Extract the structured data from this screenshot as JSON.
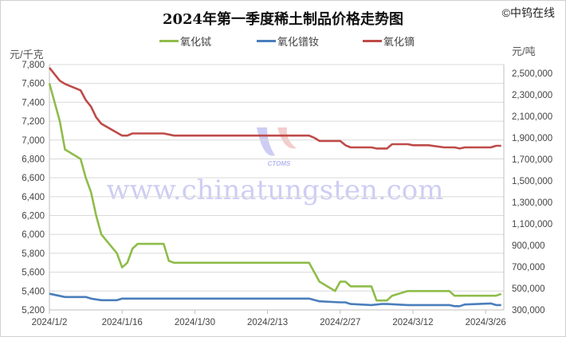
{
  "chart_data": {
    "type": "line",
    "title": "2024年第一季度稀土制品价格走势图",
    "copyright": "©中钨在线",
    "watermark": "www.chinatungsten.com",
    "watermark_logo": "CTOMS",
    "y_left_label": "元/千克",
    "y_right_label": "元/吨",
    "x_range": [
      "2024-01-02",
      "2024-03-29"
    ],
    "x_ticks": [
      {
        "date": "2024-01-02",
        "label": "2024/1/2"
      },
      {
        "date": "2024-01-16",
        "label": "2024/1/16"
      },
      {
        "date": "2024-01-30",
        "label": "2024/1/30"
      },
      {
        "date": "2024-02-13",
        "label": "2024/2/13"
      },
      {
        "date": "2024-02-27",
        "label": "2024/2/27"
      },
      {
        "date": "2024-03-12",
        "label": "2024/3/12"
      },
      {
        "date": "2024-03-26",
        "label": "2024/3/26"
      }
    ],
    "y_left": {
      "min": 5200,
      "max": 7800,
      "ticks": [
        "5,200",
        "5,400",
        "5,600",
        "5,800",
        "6,000",
        "6,200",
        "6,400",
        "6,600",
        "6,800",
        "7,000",
        "7,200",
        "7,400",
        "7,600",
        "7,800"
      ]
    },
    "y_right": {
      "min": 300000,
      "max": 2580000,
      "ticks": [
        "300,000",
        "500,000",
        "700,000",
        "900,000",
        "1,100,000",
        "1,300,000",
        "1,500,000",
        "1,700,000",
        "1,900,000",
        "2,100,000",
        "2,300,000",
        "2,500,000"
      ]
    },
    "grid": true,
    "legend_position": "top",
    "series": [
      {
        "name": "氧化铽",
        "axis": "left",
        "color": "#8fbc4a",
        "points": [
          [
            "2024-01-02",
            7600
          ],
          [
            "2024-01-04",
            7200
          ],
          [
            "2024-01-05",
            6900
          ],
          [
            "2024-01-08",
            6800
          ],
          [
            "2024-01-09",
            6600
          ],
          [
            "2024-01-10",
            6450
          ],
          [
            "2024-01-11",
            6200
          ],
          [
            "2024-01-12",
            6000
          ],
          [
            "2024-01-15",
            5800
          ],
          [
            "2024-01-16",
            5650
          ],
          [
            "2024-01-17",
            5700
          ],
          [
            "2024-01-18",
            5850
          ],
          [
            "2024-01-19",
            5900
          ],
          [
            "2024-01-24",
            5900
          ],
          [
            "2024-01-25",
            5720
          ],
          [
            "2024-01-26",
            5700
          ],
          [
            "2024-02-21",
            5700
          ],
          [
            "2024-02-23",
            5500
          ],
          [
            "2024-02-26",
            5400
          ],
          [
            "2024-02-27",
            5500
          ],
          [
            "2024-02-28",
            5500
          ],
          [
            "2024-02-29",
            5450
          ],
          [
            "2024-03-04",
            5450
          ],
          [
            "2024-03-05",
            5300
          ],
          [
            "2024-03-07",
            5300
          ],
          [
            "2024-03-08",
            5350
          ],
          [
            "2024-03-11",
            5400
          ],
          [
            "2024-03-19",
            5400
          ],
          [
            "2024-03-20",
            5350
          ],
          [
            "2024-03-28",
            5350
          ],
          [
            "2024-03-29",
            5370
          ]
        ]
      },
      {
        "name": "氧化镨钕",
        "axis": "right",
        "color": "#4a7ebb",
        "points": [
          [
            "2024-01-02",
            450000
          ],
          [
            "2024-01-05",
            420000
          ],
          [
            "2024-01-09",
            420000
          ],
          [
            "2024-01-10",
            405000
          ],
          [
            "2024-01-12",
            390000
          ],
          [
            "2024-01-15",
            390000
          ],
          [
            "2024-01-16",
            405000
          ],
          [
            "2024-02-21",
            405000
          ],
          [
            "2024-02-23",
            380000
          ],
          [
            "2024-02-27",
            370000
          ],
          [
            "2024-02-28",
            370000
          ],
          [
            "2024-02-29",
            355000
          ],
          [
            "2024-03-04",
            345000
          ],
          [
            "2024-03-06",
            355000
          ],
          [
            "2024-03-07",
            355000
          ],
          [
            "2024-03-11",
            345000
          ],
          [
            "2024-03-19",
            345000
          ],
          [
            "2024-03-20",
            335000
          ],
          [
            "2024-03-21",
            335000
          ],
          [
            "2024-03-22",
            350000
          ],
          [
            "2024-03-27",
            360000
          ],
          [
            "2024-03-28",
            345000
          ],
          [
            "2024-03-29",
            345000
          ]
        ]
      },
      {
        "name": "氧化镝",
        "axis": "right",
        "color": "#be4b48",
        "points": [
          [
            "2024-01-02",
            2550000
          ],
          [
            "2024-01-04",
            2430000
          ],
          [
            "2024-01-05",
            2400000
          ],
          [
            "2024-01-08",
            2340000
          ],
          [
            "2024-01-09",
            2250000
          ],
          [
            "2024-01-10",
            2190000
          ],
          [
            "2024-01-11",
            2090000
          ],
          [
            "2024-01-12",
            2030000
          ],
          [
            "2024-01-16",
            1920000
          ],
          [
            "2024-01-17",
            1920000
          ],
          [
            "2024-01-18",
            1940000
          ],
          [
            "2024-01-24",
            1940000
          ],
          [
            "2024-01-25",
            1930000
          ],
          [
            "2024-01-26",
            1920000
          ],
          [
            "2024-02-21",
            1920000
          ],
          [
            "2024-02-22",
            1900000
          ],
          [
            "2024-02-23",
            1870000
          ],
          [
            "2024-02-27",
            1870000
          ],
          [
            "2024-02-28",
            1830000
          ],
          [
            "2024-02-29",
            1810000
          ],
          [
            "2024-03-04",
            1810000
          ],
          [
            "2024-03-05",
            1800000
          ],
          [
            "2024-03-07",
            1800000
          ],
          [
            "2024-03-08",
            1840000
          ],
          [
            "2024-03-11",
            1840000
          ],
          [
            "2024-03-12",
            1830000
          ],
          [
            "2024-03-15",
            1830000
          ],
          [
            "2024-03-18",
            1810000
          ],
          [
            "2024-03-20",
            1810000
          ],
          [
            "2024-03-21",
            1800000
          ],
          [
            "2024-03-22",
            1810000
          ],
          [
            "2024-03-27",
            1810000
          ],
          [
            "2024-03-28",
            1825000
          ],
          [
            "2024-03-29",
            1825000
          ]
        ]
      }
    ]
  }
}
